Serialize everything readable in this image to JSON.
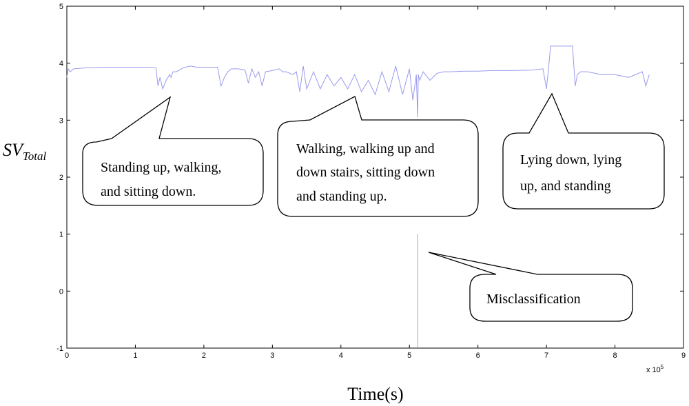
{
  "chart_data": {
    "type": "line",
    "title": "",
    "xlabel": "Time(s)",
    "ylabel_main": "SV",
    "ylabel_sub": "Total",
    "x_exponent_label": "x 10",
    "x_exponent_power": "5",
    "xlim": [
      0,
      9
    ],
    "ylim": [
      -1,
      5
    ],
    "x_ticks": [
      "0",
      "1",
      "2",
      "3",
      "4",
      "5",
      "6",
      "7",
      "8",
      "9"
    ],
    "y_ticks": [
      "-1",
      "0",
      "1",
      "2",
      "3",
      "4",
      "5"
    ],
    "grid": false,
    "line_color": "#9999ee",
    "series": [
      {
        "values_x": [
          0.0,
          0.02,
          0.05,
          0.1,
          0.3,
          0.6,
          0.9,
          1.2,
          1.3,
          1.33,
          1.36,
          1.4,
          1.45,
          1.5,
          1.52,
          1.55,
          1.6,
          1.7,
          1.8,
          1.9,
          1.95,
          2.0,
          2.1,
          2.2,
          2.25,
          2.3,
          2.35,
          2.4,
          2.5,
          2.6,
          2.65,
          2.7,
          2.75,
          2.8,
          2.85,
          2.9,
          3.0,
          3.1,
          3.15,
          3.2,
          3.3,
          3.35,
          3.4,
          3.45,
          3.5,
          3.6,
          3.7,
          3.8,
          3.9,
          4.0,
          4.1,
          4.2,
          4.3,
          4.4,
          4.5,
          4.6,
          4.7,
          4.8,
          4.9,
          5.0,
          5.05,
          5.1,
          5.12,
          5.13,
          5.15,
          5.2,
          5.3,
          5.4,
          5.5,
          5.6,
          5.8,
          6.0,
          6.2,
          6.5,
          6.8,
          6.95,
          7.0,
          7.03,
          7.06,
          7.1,
          7.2,
          7.3,
          7.38,
          7.42,
          7.45,
          7.5,
          7.6,
          7.8,
          8.0,
          8.2,
          8.4,
          8.45,
          8.5
        ],
        "values_y": [
          3.75,
          3.9,
          3.85,
          3.9,
          3.92,
          3.93,
          3.93,
          3.93,
          3.92,
          3.6,
          3.75,
          3.55,
          3.7,
          3.8,
          3.75,
          3.85,
          3.85,
          3.92,
          3.95,
          3.93,
          3.93,
          3.93,
          3.93,
          3.93,
          3.6,
          3.75,
          3.85,
          3.9,
          3.9,
          3.88,
          3.65,
          3.9,
          3.75,
          3.85,
          3.6,
          3.85,
          3.87,
          3.9,
          3.85,
          3.85,
          3.8,
          3.85,
          3.5,
          3.95,
          3.55,
          3.85,
          3.55,
          3.8,
          3.6,
          3.75,
          3.55,
          3.8,
          3.5,
          3.7,
          3.45,
          3.85,
          3.5,
          3.95,
          3.45,
          3.9,
          3.35,
          3.8,
          3.05,
          3.8,
          3.7,
          3.85,
          3.7,
          3.82,
          3.85,
          3.85,
          3.86,
          3.86,
          3.87,
          3.87,
          3.88,
          3.9,
          3.55,
          3.9,
          4.3,
          4.3,
          4.3,
          4.3,
          4.3,
          3.6,
          3.8,
          3.85,
          3.85,
          3.8,
          3.8,
          3.75,
          3.85,
          3.6,
          3.8
        ]
      }
    ],
    "spike": {
      "x": 5.12,
      "y_from": -1,
      "y_to": 1
    },
    "annotations": [
      {
        "lines": [
          "Standing up, walking,",
          "and sitting down."
        ]
      },
      {
        "lines": [
          "Walking, walking up and",
          "down stairs, sitting down",
          "and standing up."
        ]
      },
      {
        "lines": [
          "Lying down, lying",
          "up,   and   standing"
        ]
      },
      {
        "lines": [
          "Misclassification"
        ]
      }
    ]
  }
}
